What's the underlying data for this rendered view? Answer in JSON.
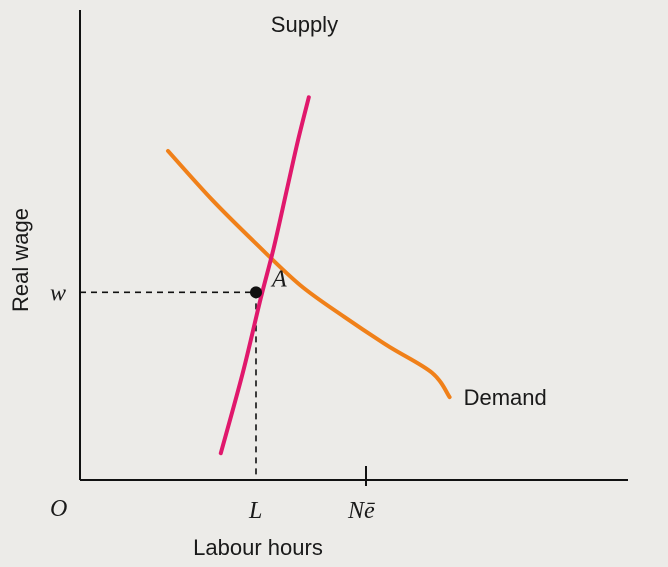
{
  "chart_data": {
    "type": "line",
    "title": "",
    "xlabel": "Labour hours",
    "ylabel": "Real wage",
    "origin_label": "O",
    "xlim": [
      0,
      10
    ],
    "ylim": [
      0,
      8
    ],
    "series": [
      {
        "name": "Supply",
        "color": "#e0186c",
        "x": [
          3.2,
          3.7,
          4.1,
          4.4,
          4.7,
          4.95,
          5.2
        ],
        "y": [
          0.55,
          2.2,
          3.7,
          4.75,
          5.95,
          6.95,
          7.85
        ]
      },
      {
        "name": "Demand",
        "color": "#f08019",
        "x": [
          2.0,
          3.0,
          4.0,
          5.0,
          6.0,
          7.0,
          8.0,
          8.4
        ],
        "y": [
          6.75,
          5.75,
          4.85,
          4.0,
          3.35,
          2.75,
          2.2,
          1.7
        ]
      }
    ],
    "equilibrium": {
      "label": "A",
      "x": 4.0,
      "y": 3.85
    },
    "x_markers": [
      {
        "label": "L",
        "x": 4.0
      },
      {
        "label": "Nē",
        "x": 6.5
      }
    ],
    "y_markers": [
      {
        "label": "w",
        "y": 3.85
      }
    ],
    "guide_lines": "dashed",
    "grid": false
  }
}
